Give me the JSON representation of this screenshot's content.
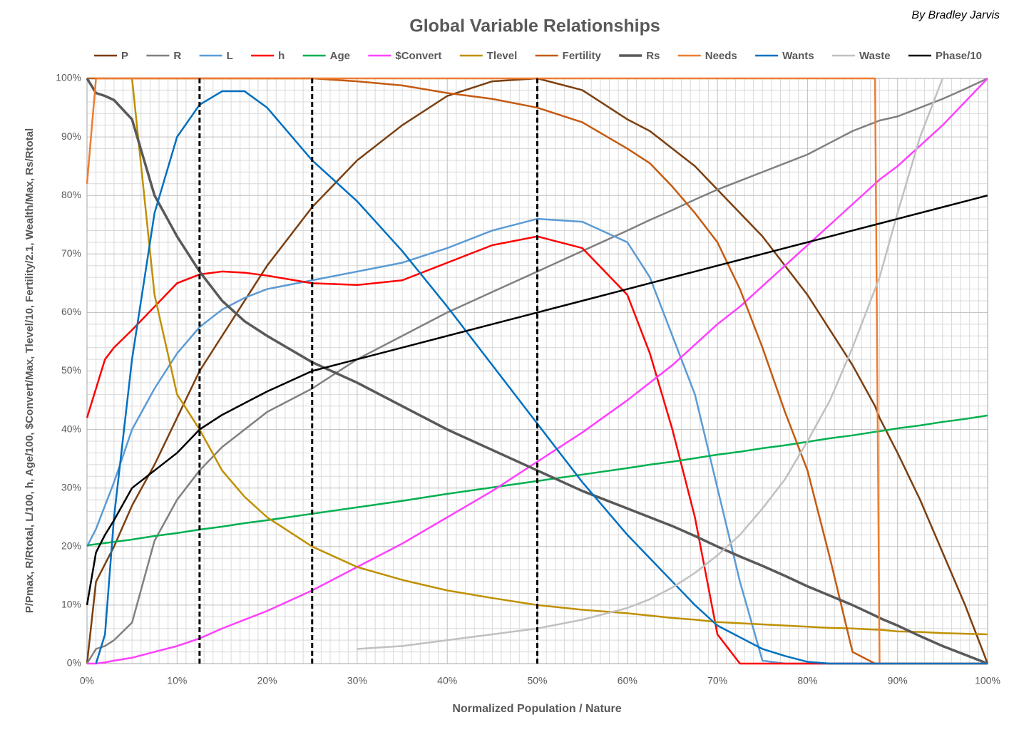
{
  "chart_data": {
    "type": "line",
    "title": "Global Variable Relationships",
    "author": "By Bradley Jarvis",
    "x_label": "Normalized Population / Nature",
    "y_label": "P/Pmax, R/Rtotal, L/100, h, Age/100, $Convert/Max, Tlevel/10, Fertility/2.1, Wealth/Max, Rs/Rtotal",
    "x": [
      0,
      1,
      2,
      3,
      5,
      7.5,
      10,
      12.5,
      15,
      17.5,
      20,
      25,
      30,
      35,
      40,
      45,
      50,
      55,
      60,
      62.5,
      65,
      67.5,
      70,
      72.5,
      75,
      77.5,
      80,
      82.5,
      85,
      87.5,
      88,
      90,
      92.5,
      95,
      97.5,
      100
    ],
    "xlim": [
      0,
      100
    ],
    "ylim": [
      0,
      100
    ],
    "xticks": [
      {
        "value": 0,
        "label": "0%"
      },
      {
        "value": 10,
        "label": "10%"
      },
      {
        "value": 20,
        "label": "20%"
      },
      {
        "value": 30,
        "label": "30%"
      },
      {
        "value": 40,
        "label": "40%"
      },
      {
        "value": 50,
        "label": "50%"
      },
      {
        "value": 60,
        "label": "60%"
      },
      {
        "value": 70,
        "label": "70%"
      },
      {
        "value": 80,
        "label": "80%"
      },
      {
        "value": 90,
        "label": "90%"
      },
      {
        "value": 100,
        "label": "100%"
      }
    ],
    "yticks": [
      {
        "value": 0,
        "label": "0%"
      },
      {
        "value": 10,
        "label": "10%"
      },
      {
        "value": 20,
        "label": "20%"
      },
      {
        "value": 30,
        "label": "30%"
      },
      {
        "value": 40,
        "label": "40%"
      },
      {
        "value": 50,
        "label": "50%"
      },
      {
        "value": 60,
        "label": "60%"
      },
      {
        "value": 70,
        "label": "70%"
      },
      {
        "value": 80,
        "label": "80%"
      },
      {
        "value": 90,
        "label": "90%"
      },
      {
        "value": 100,
        "label": "100%"
      }
    ],
    "grid": true,
    "legend": "top",
    "reference_lines": [
      12.5,
      25,
      50
    ],
    "series": [
      {
        "name": "P",
        "color": "#7b3f10",
        "line_width": 2.5,
        "values": [
          0,
          14,
          17,
          20,
          27,
          34,
          42,
          50,
          56,
          62,
          68,
          78,
          86,
          92,
          97,
          99.5,
          100,
          98,
          93,
          91,
          88,
          85,
          81,
          77,
          73,
          68,
          63,
          57,
          51,
          44,
          42,
          36,
          28,
          19,
          10,
          0
        ]
      },
      {
        "name": "R",
        "color": "#808080",
        "line_width": 2.5,
        "values": [
          0,
          2.5,
          3,
          4,
          7,
          21,
          28,
          33,
          37,
          40,
          43,
          47,
          52,
          56,
          60,
          63.5,
          67,
          70.5,
          74,
          75.8,
          77.5,
          79.3,
          81,
          82.5,
          84,
          85.5,
          87,
          89,
          91,
          92.5,
          92.8,
          93.5,
          95,
          96.5,
          98.2,
          100
        ]
      },
      {
        "name": "L",
        "color": "#5b9bd5",
        "line_width": 2.5,
        "values": [
          20,
          23,
          27,
          31,
          40,
          47,
          53,
          57.5,
          60.5,
          62.5,
          64,
          65.5,
          67,
          68.5,
          71,
          74,
          76,
          75.5,
          72,
          66,
          56,
          46,
          30,
          14,
          0.5,
          0,
          0,
          0,
          0,
          0,
          0,
          0,
          0,
          0,
          0,
          0
        ]
      },
      {
        "name": "h",
        "color": "#ff0000",
        "line_width": 2.5,
        "values": [
          42,
          47,
          52,
          54,
          57,
          61,
          65,
          66.5,
          67,
          66.8,
          66.3,
          65,
          64.7,
          65.5,
          68.5,
          71.5,
          73,
          71,
          63,
          53,
          40,
          25,
          5,
          0,
          0,
          0,
          0,
          0,
          0,
          0,
          0,
          0,
          0,
          0,
          0,
          0
        ]
      },
      {
        "name": "Age",
        "color": "#00b050",
        "line_width": 2.5,
        "values": [
          20.2,
          20.4,
          20.6,
          20.8,
          21.2,
          21.8,
          22.3,
          22.9,
          23.4,
          24,
          24.5,
          25.6,
          26.7,
          27.8,
          29,
          30.1,
          31.2,
          32.3,
          33.4,
          34,
          34.5,
          35.1,
          35.7,
          36.2,
          36.8,
          37.3,
          37.9,
          38.5,
          39,
          39.6,
          39.7,
          40.2,
          40.7,
          41.3,
          41.8,
          42.4
        ]
      },
      {
        "name": "$Convert",
        "color": "#ff40ff",
        "line_width": 2.5,
        "values": [
          0,
          0,
          0.2,
          0.5,
          1,
          2,
          3,
          4.3,
          6,
          7.5,
          9,
          12.5,
          16.5,
          20.5,
          25,
          29.5,
          34.5,
          39.5,
          45,
          48,
          51,
          54.5,
          58,
          61,
          64.5,
          68,
          71.5,
          75,
          78.5,
          82,
          82.7,
          85,
          88.5,
          92,
          96,
          100
        ]
      },
      {
        "name": "Tlevel",
        "color": "#bf9000",
        "line_width": 2.5,
        "values": [
          null,
          null,
          null,
          null,
          100,
          63,
          46,
          40,
          33,
          28.5,
          25,
          20,
          16.5,
          14.3,
          12.5,
          11.2,
          10,
          9.2,
          8.6,
          8.2,
          7.8,
          7.5,
          7.1,
          6.9,
          6.7,
          6.5,
          6.3,
          6.1,
          6,
          5.8,
          5.8,
          5.5,
          5.4,
          5.2,
          5.1,
          5
        ]
      },
      {
        "name": "Fertility",
        "color": "#c55a11",
        "line_width": 2.5,
        "values": [
          100,
          100,
          100,
          100,
          100,
          100,
          100,
          100,
          100,
          100,
          100,
          100,
          99.5,
          98.8,
          97.5,
          96.5,
          95,
          92.5,
          88,
          85.5,
          81.5,
          77,
          72,
          64,
          54,
          43,
          33,
          18,
          2,
          0,
          0,
          0,
          0,
          0,
          0,
          0
        ]
      },
      {
        "name": "Rs",
        "color": "#595959",
        "line_width": 3.5,
        "values": [
          100,
          97.5,
          97,
          96.3,
          93,
          80,
          73,
          67,
          62,
          58.5,
          56,
          51.5,
          48,
          44,
          40,
          36.5,
          33,
          29.5,
          26.5,
          25,
          23.5,
          21.8,
          20,
          18.3,
          16.7,
          15,
          13.2,
          11.6,
          10,
          8.2,
          7.8,
          6.5,
          4.7,
          3,
          1.5,
          0
        ]
      },
      {
        "name": "Needs",
        "color": "#ed7d31",
        "line_width": 2.5,
        "values": [
          82,
          100,
          100,
          100,
          100,
          100,
          100,
          100,
          100,
          100,
          100,
          100,
          100,
          100,
          100,
          100,
          100,
          100,
          100,
          100,
          100,
          100,
          100,
          100,
          100,
          100,
          100,
          100,
          100,
          100,
          0,
          0,
          0,
          0,
          0,
          0
        ]
      },
      {
        "name": "Wants",
        "color": "#0070c0",
        "line_width": 2.5,
        "values": [
          null,
          0,
          5,
          25,
          52,
          77,
          90,
          95.5,
          97.8,
          97.8,
          95,
          86,
          79,
          70.5,
          61,
          51,
          41,
          31,
          22,
          18,
          14,
          10,
          6.5,
          4.5,
          2.5,
          1.3,
          0.3,
          0,
          0,
          0,
          0,
          0,
          0,
          0,
          0,
          0
        ]
      },
      {
        "name": "Waste",
        "color": "#c0c0c0",
        "line_width": 2.5,
        "values": [
          null,
          null,
          null,
          null,
          null,
          null,
          null,
          null,
          null,
          null,
          null,
          null,
          2.5,
          3,
          4,
          5,
          6,
          7.5,
          9.5,
          11,
          13,
          15.5,
          18.5,
          22,
          26.5,
          31.5,
          38,
          45,
          54,
          64,
          66,
          77,
          90,
          100,
          null,
          null
        ]
      },
      {
        "name": "Phase/10",
        "color": "#000000",
        "line_width": 2.5,
        "values": [
          10,
          19,
          22,
          24.5,
          30,
          33,
          36,
          40,
          42.5,
          44.5,
          46.5,
          50,
          52,
          54,
          56,
          58,
          60,
          62,
          64,
          65,
          66,
          67,
          68,
          69,
          70,
          71,
          72,
          73,
          74,
          75,
          75.2,
          76,
          77,
          78,
          79,
          80
        ]
      }
    ]
  }
}
